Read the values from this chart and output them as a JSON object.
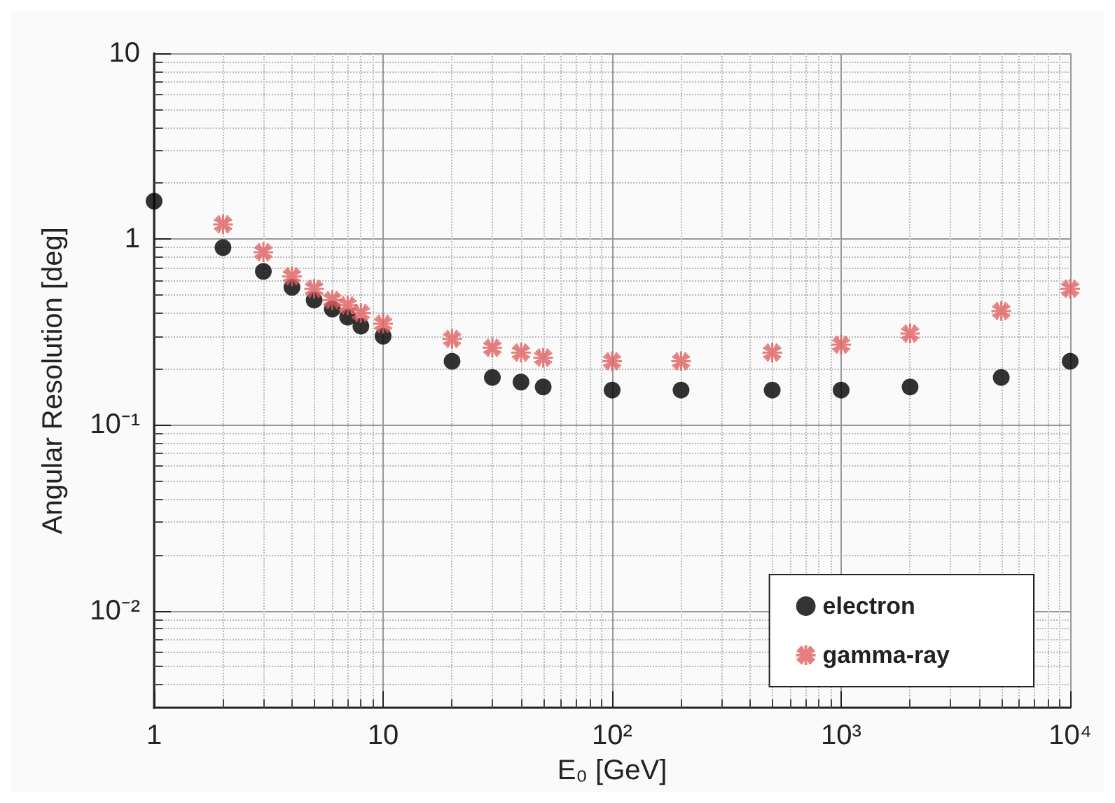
{
  "chart_data": {
    "type": "scatter",
    "xlabel": "E₀ [GeV]",
    "ylabel": "Angular Resolution [deg]",
    "log": "xy",
    "grid": true,
    "legend": "bottom right",
    "xlim": [
      1,
      10000
    ],
    "xticks": [
      1,
      10,
      {
        "value": 100,
        "label": "10²"
      },
      {
        "value": 1000,
        "label": "10³"
      },
      {
        "value": 10000,
        "label": "10⁴"
      }
    ],
    "ylim": [
      0.003,
      10
    ],
    "yticks": [
      {
        "value": 0.01,
        "label": "10⁻²"
      },
      {
        "value": 0.1,
        "label": "10⁻¹"
      },
      1,
      10
    ],
    "series": [
      {
        "name": "electron",
        "color": "#000000",
        "marker": "circle",
        "x": [
          1,
          2,
          3,
          4,
          5,
          6,
          7,
          8,
          10,
          20,
          30,
          40,
          50,
          100,
          200,
          500,
          1000,
          2000,
          5000,
          10000
        ],
        "values": [
          1.6,
          0.9,
          0.67,
          0.55,
          0.47,
          0.42,
          0.38,
          0.34,
          0.3,
          0.22,
          0.18,
          0.17,
          0.16,
          0.154,
          0.154,
          0.154,
          0.154,
          0.16,
          0.18,
          0.22
        ]
      },
      {
        "name": "gamma-ray",
        "color": "#e06060",
        "marker": "cross",
        "x": [
          2,
          3,
          4,
          5,
          6,
          7,
          8,
          10,
          20,
          30,
          40,
          50,
          100,
          200,
          500,
          1000,
          2000,
          5000,
          10000
        ],
        "values": [
          1.2,
          0.85,
          0.63,
          0.54,
          0.47,
          0.44,
          0.4,
          0.35,
          0.29,
          0.26,
          0.245,
          0.23,
          0.22,
          0.22,
          0.245,
          0.27,
          0.31,
          0.41,
          0.54
        ]
      }
    ]
  }
}
